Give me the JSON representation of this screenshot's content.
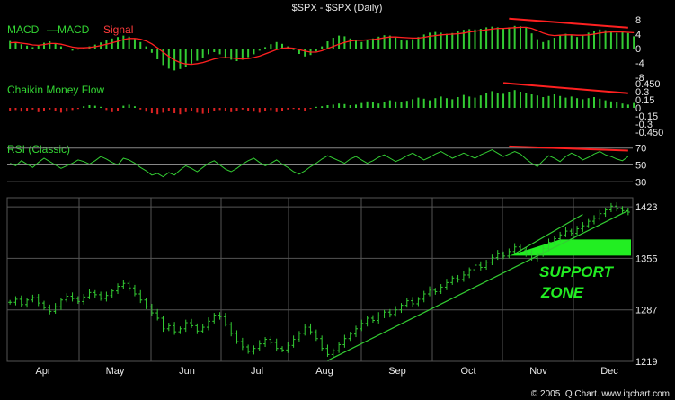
{
  "title": "$SPX - $SPX (Daily)",
  "copyright": "© 2005 IQ Chart. www.iqchart.com",
  "colors": {
    "background": "#000000",
    "bull": "#33cc33",
    "bear": "#dd2222",
    "signal": "#ff2020",
    "grid": "#555555",
    "annotation": "#22ee22"
  },
  "chart_data": [
    {
      "type": "bar",
      "panel": "MACD",
      "legend": [
        "MACD",
        "—MACD",
        "Signal"
      ],
      "yticks": [
        "8",
        "4",
        "0",
        "-4",
        "-8"
      ],
      "ylim": [
        -9,
        9
      ],
      "months": [
        "Apr",
        "May",
        "Jun",
        "Jul",
        "Aug",
        "Sep",
        "Oct",
        "Nov",
        "Dec"
      ],
      "series": [
        {
          "name": "MACD",
          "values": [
            2.1,
            1.8,
            1.2,
            0.8,
            0.4,
            0.9,
            1.6,
            2.0,
            1.4,
            0.6,
            -0.2,
            -0.6,
            -0.3,
            0.2,
            0.6,
            1.1,
            1.7,
            2.3,
            2.8,
            3.2,
            3.6,
            3.3,
            2.6,
            1.8,
            0.6,
            -1.2,
            -3.0,
            -4.6,
            -5.6,
            -6.1,
            -5.7,
            -5.0,
            -4.2,
            -3.4,
            -2.5,
            -1.6,
            -1.0,
            -1.6,
            -2.4,
            -3.1,
            -3.5,
            -3.1,
            -2.4,
            -1.6,
            -0.6,
            0.4,
            1.2,
            1.8,
            1.3,
            0.6,
            -0.4,
            -1.5,
            -2.2,
            -1.8,
            -0.8,
            0.6,
            2.0,
            3.0,
            3.6,
            3.4,
            2.8,
            2.2,
            1.8,
            2.3,
            2.8,
            3.3,
            3.7,
            3.6,
            3.1,
            2.5,
            2.2,
            2.6,
            3.2,
            3.9,
            4.4,
            4.6,
            4.4,
            4.1,
            4.3,
            4.8,
            5.2,
            5.4,
            5.3,
            5.5,
            5.9,
            6.1,
            5.9,
            5.7,
            5.9,
            6.3,
            6.2,
            5.8,
            4.2,
            2.6,
            1.8,
            2.2,
            3.0,
            3.8,
            4.1,
            3.7,
            3.2,
            3.6,
            4.4,
            5.0,
            5.3,
            5.1,
            4.7,
            4.3,
            4.8,
            4.3,
            3.4
          ]
        },
        {
          "name": "Signal",
          "values": [
            1.6,
            1.7,
            1.5,
            1.3,
            1.0,
            0.9,
            1.1,
            1.4,
            1.4,
            1.2,
            0.8,
            0.4,
            0.2,
            0.2,
            0.3,
            0.5,
            0.8,
            1.2,
            1.6,
            2.0,
            2.5,
            2.8,
            2.8,
            2.6,
            2.1,
            1.3,
            0.2,
            -1.0,
            -2.2,
            -3.2,
            -3.9,
            -4.3,
            -4.4,
            -4.2,
            -3.9,
            -3.4,
            -2.9,
            -2.6,
            -2.5,
            -2.6,
            -2.8,
            -2.9,
            -2.8,
            -2.5,
            -2.1,
            -1.5,
            -0.9,
            -0.3,
            0.1,
            0.2,
            0.1,
            -0.3,
            -0.7,
            -1.0,
            -1.0,
            -0.6,
            0.0,
            0.6,
            1.2,
            1.7,
            2.1,
            2.3,
            2.3,
            2.4,
            2.5,
            2.7,
            3.0,
            3.2,
            3.2,
            3.1,
            3.0,
            2.9,
            2.9,
            3.1,
            3.4,
            3.6,
            3.8,
            3.9,
            4.0,
            4.1,
            4.3,
            4.6,
            4.8,
            5.0,
            5.2,
            5.4,
            5.6,
            5.6,
            5.7,
            5.8,
            5.9,
            5.9,
            5.6,
            5.0,
            4.3,
            3.8,
            3.6,
            3.7,
            3.8,
            3.8,
            3.7,
            3.7,
            3.8,
            4.0,
            4.3,
            4.5,
            4.6,
            4.6,
            4.6,
            4.5,
            4.4
          ]
        }
      ],
      "annotations": [
        {
          "type": "trendline",
          "color": "#ff2020",
          "from": {
            "index": 88,
            "value": 8.3
          },
          "to": {
            "index": 109,
            "value": 5.8
          }
        }
      ]
    },
    {
      "type": "bar",
      "panel": "Chaikin Money Flow",
      "legend": [
        "Chaikin Money Flow"
      ],
      "yticks": [
        "0.450",
        "0.3",
        "0.15",
        "0",
        "-0.15",
        "-0.3",
        "-0.450"
      ],
      "ylim": [
        -0.5,
        0.5
      ],
      "series": [
        {
          "name": "Chaikin Money Flow",
          "values": [
            -0.06,
            -0.04,
            -0.07,
            -0.05,
            -0.03,
            -0.08,
            -0.05,
            -0.03,
            -0.06,
            -0.09,
            -0.07,
            -0.04,
            -0.02,
            0.03,
            0.05,
            0.04,
            0.02,
            -0.04,
            -0.08,
            -0.06,
            0.04,
            0.06,
            0.03,
            -0.03,
            -0.07,
            -0.1,
            -0.12,
            -0.09,
            -0.06,
            -0.1,
            -0.12,
            -0.08,
            -0.05,
            -0.09,
            -0.11,
            -0.1,
            -0.06,
            -0.04,
            -0.06,
            -0.08,
            -0.05,
            -0.03,
            -0.05,
            -0.07,
            -0.09,
            -0.06,
            -0.04,
            -0.08,
            -0.06,
            -0.03,
            -0.02,
            -0.03,
            -0.05,
            -0.02,
            0.02,
            0.03,
            0.05,
            0.06,
            0.08,
            0.07,
            0.05,
            0.06,
            0.09,
            0.12,
            0.1,
            0.08,
            0.11,
            0.14,
            0.12,
            0.1,
            0.13,
            0.16,
            0.19,
            0.17,
            0.14,
            0.18,
            0.21,
            0.18,
            0.16,
            0.2,
            0.24,
            0.21,
            0.19,
            0.23,
            0.27,
            0.31,
            0.28,
            0.26,
            0.3,
            0.33,
            0.3,
            0.27,
            0.25,
            0.23,
            0.2,
            0.22,
            0.25,
            0.22,
            0.19,
            0.21,
            0.18,
            0.16,
            0.18,
            0.2,
            0.17,
            0.14,
            0.12,
            0.1,
            0.08,
            0.06,
            0.09
          ]
        }
      ],
      "annotations": [
        {
          "type": "trendline",
          "color": "#ff2020",
          "from": {
            "index": 87,
            "value": 0.46
          },
          "to": {
            "index": 109,
            "value": 0.27
          }
        }
      ]
    },
    {
      "type": "line",
      "panel": "RSI (Classic)",
      "legend": [
        "RSI (Classic)"
      ],
      "yticks": [
        "70",
        "50",
        "30"
      ],
      "ylim": [
        25,
        75
      ],
      "series": [
        {
          "name": "RSI",
          "values": [
            52,
            49,
            55,
            51,
            47,
            53,
            58,
            54,
            50,
            46,
            49,
            52,
            56,
            54,
            51,
            55,
            60,
            57,
            53,
            50,
            58,
            56,
            52,
            47,
            43,
            38,
            40,
            36,
            41,
            38,
            44,
            49,
            46,
            42,
            47,
            52,
            55,
            50,
            45,
            42,
            46,
            51,
            55,
            58,
            53,
            49,
            52,
            56,
            51,
            47,
            42,
            39,
            43,
            48,
            52,
            57,
            61,
            58,
            55,
            52,
            57,
            60,
            56,
            52,
            55,
            59,
            62,
            58,
            54,
            57,
            61,
            64,
            60,
            56,
            59,
            63,
            66,
            62,
            58,
            61,
            64,
            61,
            58,
            62,
            65,
            68,
            64,
            60,
            63,
            66,
            63,
            57,
            52,
            48,
            55,
            61,
            58,
            54,
            60,
            64,
            61,
            56,
            59,
            63,
            66,
            62,
            60,
            57,
            55,
            60
          ]
        }
      ],
      "annotations": [
        {
          "type": "trendline",
          "color": "#ff2020",
          "from": {
            "index": 88,
            "value": 72
          },
          "to": {
            "index": 109,
            "value": 67
          }
        }
      ]
    },
    {
      "type": "bar",
      "panel": "$SPX",
      "subtype": "ohlc",
      "yticks": [
        "1423",
        "1355",
        "1287",
        "1219"
      ],
      "ylim": [
        1219,
        1435
      ],
      "xticks": [
        "Apr",
        "May",
        "Jun",
        "Jul",
        "Aug",
        "Sep",
        "Oct",
        "Nov",
        "Dec"
      ],
      "series": [
        {
          "name": "$SPX",
          "values": [
            1297,
            1301,
            1294,
            1300,
            1303,
            1296,
            1290,
            1285,
            1291,
            1300,
            1305,
            1302,
            1298,
            1304,
            1310,
            1307,
            1302,
            1306,
            1312,
            1318,
            1322,
            1316,
            1308,
            1300,
            1291,
            1283,
            1276,
            1262,
            1266,
            1258,
            1262,
            1270,
            1266,
            1259,
            1264,
            1272,
            1280,
            1278,
            1268,
            1256,
            1245,
            1238,
            1232,
            1236,
            1242,
            1248,
            1244,
            1236,
            1234,
            1240,
            1248,
            1256,
            1264,
            1258,
            1249,
            1236,
            1228,
            1233,
            1241,
            1249,
            1255,
            1262,
            1269,
            1276,
            1273,
            1279,
            1284,
            1281,
            1287,
            1293,
            1299,
            1295,
            1301,
            1308,
            1313,
            1311,
            1317,
            1323,
            1329,
            1327,
            1333,
            1340,
            1346,
            1343,
            1350,
            1356,
            1361,
            1358,
            1364,
            1370,
            1366,
            1361,
            1355,
            1360,
            1368,
            1376,
            1381,
            1386,
            1391,
            1388,
            1394,
            1398,
            1404,
            1408,
            1414,
            1419,
            1424,
            1421,
            1418,
            1416
          ]
        }
      ],
      "annotations": [
        {
          "type": "trendline",
          "color": "#33cc33",
          "from": {
            "index": 56,
            "value": 1220
          },
          "to": {
            "index": 109,
            "value": 1418
          }
        },
        {
          "type": "trendline",
          "color": "#33cc33",
          "from": {
            "index": 89,
            "value": 1361
          },
          "to": {
            "index": 101,
            "value": 1413
          }
        },
        {
          "type": "text",
          "lines": [
            "SUPPORT",
            "ZONE"
          ],
          "color": "#22ee22"
        }
      ]
    }
  ]
}
